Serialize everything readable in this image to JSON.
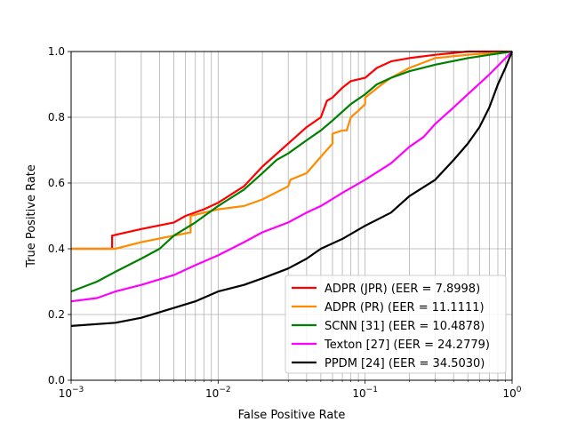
{
  "chart_data": {
    "type": "line",
    "title": "",
    "xlabel": "False Positive Rate",
    "ylabel": "True Positive Rate",
    "xscale": "log",
    "xlim": [
      0.001,
      1
    ],
    "ylim": [
      0.0,
      1.0
    ],
    "grid": true,
    "legend_position": "lower-right",
    "x_ticks": [
      {
        "value": 0.001,
        "base": "10",
        "exp": "−3"
      },
      {
        "value": 0.01,
        "base": "10",
        "exp": "−2"
      },
      {
        "value": 0.1,
        "base": "10",
        "exp": "−1"
      },
      {
        "value": 1,
        "base": "10",
        "exp": "0"
      }
    ],
    "y_ticks": [
      {
        "value": 0.0,
        "label": "0.0"
      },
      {
        "value": 0.2,
        "label": "0.2"
      },
      {
        "value": 0.4,
        "label": "0.4"
      },
      {
        "value": 0.6,
        "label": "0.6"
      },
      {
        "value": 0.8,
        "label": "0.8"
      },
      {
        "value": 1.0,
        "label": "1.0"
      }
    ],
    "series": [
      {
        "name": "ADPR (JPR) (EER = 7.8998)",
        "color": "#ff0000",
        "points": [
          [
            0.001,
            0.4
          ],
          [
            0.0019,
            0.4
          ],
          [
            0.0019,
            0.44
          ],
          [
            0.003,
            0.46
          ],
          [
            0.005,
            0.48
          ],
          [
            0.006,
            0.5
          ],
          [
            0.008,
            0.52
          ],
          [
            0.01,
            0.54
          ],
          [
            0.015,
            0.59
          ],
          [
            0.02,
            0.65
          ],
          [
            0.03,
            0.72
          ],
          [
            0.04,
            0.77
          ],
          [
            0.05,
            0.8
          ],
          [
            0.055,
            0.85
          ],
          [
            0.06,
            0.86
          ],
          [
            0.07,
            0.89
          ],
          [
            0.08,
            0.91
          ],
          [
            0.1,
            0.92
          ],
          [
            0.12,
            0.95
          ],
          [
            0.15,
            0.97
          ],
          [
            0.2,
            0.98
          ],
          [
            0.3,
            0.99
          ],
          [
            0.5,
            1.0
          ],
          [
            1.0,
            1.0
          ]
        ]
      },
      {
        "name": "ADPR (PR) (EER = 11.1111)",
        "color": "#ff8c00",
        "points": [
          [
            0.001,
            0.4
          ],
          [
            0.002,
            0.4
          ],
          [
            0.003,
            0.42
          ],
          [
            0.0065,
            0.45
          ],
          [
            0.0065,
            0.5
          ],
          [
            0.01,
            0.52
          ],
          [
            0.015,
            0.53
          ],
          [
            0.02,
            0.55
          ],
          [
            0.03,
            0.59
          ],
          [
            0.031,
            0.61
          ],
          [
            0.04,
            0.63
          ],
          [
            0.05,
            0.68
          ],
          [
            0.06,
            0.72
          ],
          [
            0.06,
            0.75
          ],
          [
            0.07,
            0.76
          ],
          [
            0.075,
            0.76
          ],
          [
            0.08,
            0.8
          ],
          [
            0.09,
            0.82
          ],
          [
            0.1,
            0.84
          ],
          [
            0.1,
            0.86
          ],
          [
            0.13,
            0.9
          ],
          [
            0.15,
            0.92
          ],
          [
            0.2,
            0.95
          ],
          [
            0.3,
            0.98
          ],
          [
            0.5,
            0.99
          ],
          [
            1.0,
            1.0
          ]
        ]
      },
      {
        "name": "SCNN [31] (EER = 10.4878)",
        "color": "#008000",
        "points": [
          [
            0.001,
            0.27
          ],
          [
            0.0015,
            0.3
          ],
          [
            0.002,
            0.33
          ],
          [
            0.003,
            0.37
          ],
          [
            0.004,
            0.4
          ],
          [
            0.005,
            0.44
          ],
          [
            0.007,
            0.48
          ],
          [
            0.01,
            0.53
          ],
          [
            0.015,
            0.58
          ],
          [
            0.02,
            0.63
          ],
          [
            0.025,
            0.67
          ],
          [
            0.03,
            0.69
          ],
          [
            0.04,
            0.73
          ],
          [
            0.05,
            0.76
          ],
          [
            0.06,
            0.79
          ],
          [
            0.08,
            0.84
          ],
          [
            0.1,
            0.87
          ],
          [
            0.12,
            0.9
          ],
          [
            0.15,
            0.92
          ],
          [
            0.2,
            0.94
          ],
          [
            0.3,
            0.96
          ],
          [
            0.5,
            0.98
          ],
          [
            0.7,
            0.99
          ],
          [
            1.0,
            1.0
          ]
        ]
      },
      {
        "name": "Texton [27] (EER = 24.2779)",
        "color": "#ff00ff",
        "points": [
          [
            0.001,
            0.24
          ],
          [
            0.0015,
            0.25
          ],
          [
            0.002,
            0.27
          ],
          [
            0.003,
            0.29
          ],
          [
            0.005,
            0.32
          ],
          [
            0.007,
            0.35
          ],
          [
            0.01,
            0.38
          ],
          [
            0.015,
            0.42
          ],
          [
            0.02,
            0.45
          ],
          [
            0.03,
            0.48
          ],
          [
            0.04,
            0.51
          ],
          [
            0.05,
            0.53
          ],
          [
            0.07,
            0.57
          ],
          [
            0.1,
            0.61
          ],
          [
            0.15,
            0.66
          ],
          [
            0.2,
            0.71
          ],
          [
            0.25,
            0.74
          ],
          [
            0.3,
            0.78
          ],
          [
            0.4,
            0.83
          ],
          [
            0.5,
            0.87
          ],
          [
            0.7,
            0.93
          ],
          [
            1.0,
            1.0
          ]
        ]
      },
      {
        "name": "PPDM [24] (EER = 34.5030)",
        "color": "#000000",
        "points": [
          [
            0.001,
            0.165
          ],
          [
            0.002,
            0.175
          ],
          [
            0.003,
            0.19
          ],
          [
            0.005,
            0.22
          ],
          [
            0.007,
            0.24
          ],
          [
            0.01,
            0.27
          ],
          [
            0.015,
            0.29
          ],
          [
            0.02,
            0.31
          ],
          [
            0.03,
            0.34
          ],
          [
            0.04,
            0.37
          ],
          [
            0.05,
            0.4
          ],
          [
            0.07,
            0.43
          ],
          [
            0.1,
            0.47
          ],
          [
            0.15,
            0.51
          ],
          [
            0.2,
            0.56
          ],
          [
            0.3,
            0.61
          ],
          [
            0.4,
            0.67
          ],
          [
            0.5,
            0.72
          ],
          [
            0.6,
            0.77
          ],
          [
            0.7,
            0.83
          ],
          [
            0.8,
            0.9
          ],
          [
            0.9,
            0.95
          ],
          [
            1.0,
            1.0
          ]
        ]
      }
    ]
  }
}
